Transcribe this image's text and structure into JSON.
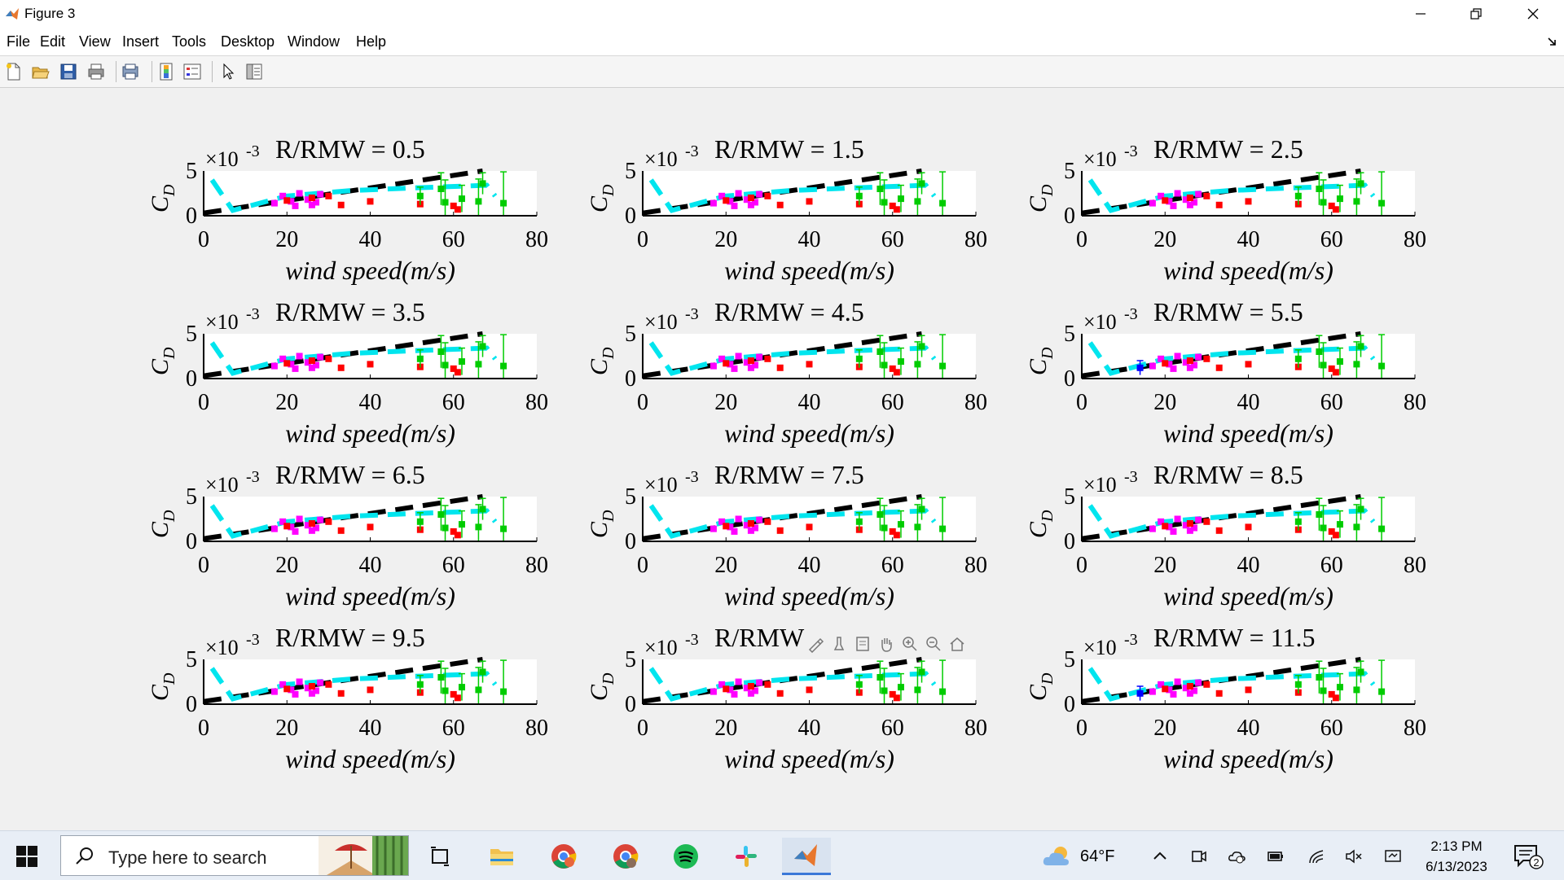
{
  "window": {
    "title": "Figure 3"
  },
  "menu": [
    "File",
    "Edit",
    "View",
    "Insert",
    "Tools",
    "Desktop",
    "Window",
    "Help"
  ],
  "toolbar": {
    "buttons": [
      "new-figure-icon",
      "open-file-icon",
      "save-icon",
      "print-icon",
      "print-preview-icon",
      "colorbar-icon",
      "legend-icon",
      "pointer-icon",
      "property-inspector-icon"
    ]
  },
  "axes_toolbar": [
    "brush-icon",
    "data-tips-icon",
    "pan-restore-icon",
    "pan-icon",
    "zoom-in-icon",
    "zoom-out-icon",
    "home-icon"
  ],
  "figure": {
    "exponent_label": "×10",
    "exponent_power": "-3",
    "ylabel": "C",
    "ylabel_sub": "D",
    "xlabel": "wind speed(m/s)"
  },
  "chart_data": {
    "type": "scatter",
    "layout": "4x3 subplots",
    "titles": [
      "R/RMW = 0.5",
      "R/RMW = 1.5",
      "R/RMW = 2.5",
      "R/RMW = 3.5",
      "R/RMW = 4.5",
      "R/RMW = 5.5",
      "R/RMW = 6.5",
      "R/RMW = 7.5",
      "R/RMW = 8.5",
      "R/RMW = 9.5",
      "R/RMW = 10.5",
      "R/RMW = 11.5"
    ],
    "title_visible_text": [
      "R/RMW = 0.5",
      "R/RMW = 1.5",
      "R/RMW = 2.5",
      "R/RMW = 3.5",
      "R/RMW = 4.5",
      "R/RMW = 5.5",
      "R/RMW = 6.5",
      "R/RMW = 7.5",
      "R/RMW = 8.5",
      "R/RMW = 9.5",
      "R/RMW",
      "R/RMW = 11.5"
    ],
    "xlim": [
      0,
      80
    ],
    "ylim": [
      0,
      5
    ],
    "xticks": [
      0,
      20,
      40,
      60,
      80
    ],
    "yticks": [
      0,
      5
    ],
    "y_scale_factor": "1e-3",
    "series": [
      {
        "color": "#000000",
        "style": "dashed-line",
        "points": [
          [
            0,
            0.3
          ],
          [
            67,
            5.0
          ]
        ]
      },
      {
        "color": "#00e5ee",
        "style": "dashed-line",
        "points": [
          [
            2,
            4.0
          ],
          [
            7,
            0.6
          ],
          [
            20,
            2.2
          ],
          [
            35,
            2.8
          ],
          [
            50,
            3.1
          ],
          [
            68,
            3.4
          ],
          [
            70,
            2.2
          ]
        ]
      },
      {
        "color": "#ff00ff",
        "style": "markers",
        "points": [
          [
            17,
            1.4
          ],
          [
            19,
            2.2
          ],
          [
            21,
            1.6
          ],
          [
            23,
            2.5
          ],
          [
            25,
            1.8
          ],
          [
            27,
            1.5
          ],
          [
            28,
            2.4
          ],
          [
            22,
            1.1
          ],
          [
            26,
            1.2
          ]
        ]
      },
      {
        "color": "#ff0000",
        "style": "markers",
        "points": [
          [
            20,
            1.7
          ],
          [
            26,
            2.0
          ],
          [
            30,
            2.2
          ],
          [
            33,
            1.2
          ],
          [
            40,
            1.6
          ],
          [
            52,
            1.3
          ],
          [
            60,
            1.1
          ],
          [
            61,
            0.7
          ]
        ]
      },
      {
        "color": "#00cc00",
        "style": "markers-errorbars",
        "points": [
          [
            52,
            2.2,
            1.0
          ],
          [
            57,
            3.0,
            1.8
          ],
          [
            58,
            1.5,
            2.5
          ],
          [
            62,
            1.9,
            1.5
          ],
          [
            66,
            1.6,
            2.5
          ],
          [
            67,
            3.6,
            1.2
          ],
          [
            72,
            1.4,
            3.5
          ]
        ]
      },
      {
        "color": "#0000ff",
        "style": "markers-errorbars",
        "panels": [
          5,
          11
        ],
        "points": [
          [
            14,
            1.2,
            0.8
          ]
        ]
      }
    ]
  },
  "taskbar": {
    "search_placeholder": "Type here to search",
    "apps": [
      "task-view-icon",
      "file-explorer-icon",
      "chrome-icon",
      "chrome-profile-icon",
      "spotify-icon",
      "slack-icon",
      "matlab-icon"
    ],
    "weather": "64°F",
    "time": "2:13 PM",
    "date": "6/13/2023",
    "notification_count": "2"
  }
}
